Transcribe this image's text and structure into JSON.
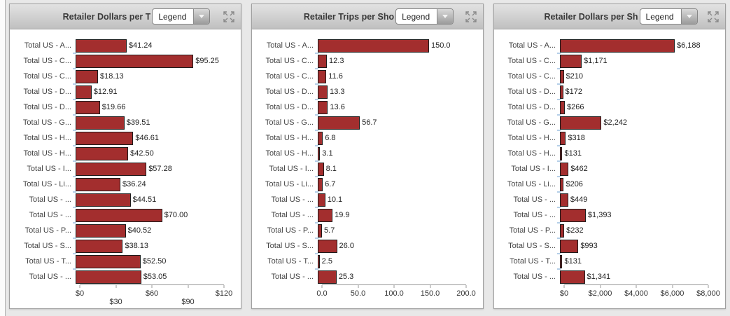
{
  "window": {
    "background": "#e8e8e8"
  },
  "legend_label": "Legend",
  "icons": {
    "header_right": "expand-arrows",
    "dropdown": "chevron-down"
  },
  "chart_data": [
    {
      "type": "bar",
      "orientation": "horizontal",
      "title": "Retailer Dollars per T",
      "legend": "Legend",
      "bar_color": "#A32E2E",
      "categories": [
        "Total US - A...",
        "Total US - C...",
        "Total US - C...",
        "Total US - D...",
        "Total US - D...",
        "Total US - G...",
        "Total US - H...",
        "Total US - H...",
        "Total US - I...",
        "Total US - Li...",
        "Total US - ...",
        "Total US - ...",
        "Total US - P...",
        "Total US - S...",
        "Total US - T...",
        "Total US - ..."
      ],
      "values": [
        41.24,
        95.25,
        18.13,
        12.91,
        19.66,
        39.51,
        46.61,
        42.5,
        57.28,
        36.24,
        44.51,
        70.0,
        40.52,
        38.13,
        52.5,
        53.05
      ],
      "value_labels": [
        "$41.24",
        "$95.25",
        "$18.13",
        "$12.91",
        "$19.66",
        "$39.51",
        "$46.61",
        "$42.50",
        "$57.28",
        "$36.24",
        "$44.51",
        "$70.00",
        "$40.52",
        "$38.13",
        "$52.50",
        "$53.05"
      ],
      "xlim": [
        0,
        120
      ],
      "x_ticks": [
        "$0",
        "$30",
        "$60",
        "$90",
        "$120"
      ],
      "x_axis_staggered": true,
      "grid": false
    },
    {
      "type": "bar",
      "orientation": "horizontal",
      "title": "Retailer Trips per Sho",
      "legend": "Legend",
      "bar_color": "#A32E2E",
      "categories": [
        "Total US - A...",
        "Total US - C...",
        "Total US - C...",
        "Total US - D...",
        "Total US - D...",
        "Total US - G...",
        "Total US - H...",
        "Total US - H...",
        "Total US - I...",
        "Total US - Li...",
        "Total US - ...",
        "Total US - ...",
        "Total US - P...",
        "Total US - S...",
        "Total US - T...",
        "Total US - ..."
      ],
      "values": [
        150.0,
        12.3,
        11.6,
        13.3,
        13.6,
        56.7,
        6.8,
        3.1,
        8.1,
        6.7,
        10.1,
        19.9,
        5.7,
        26.0,
        2.5,
        25.3
      ],
      "value_labels": [
        "150.0",
        "12.3",
        "11.6",
        "13.3",
        "13.6",
        "56.7",
        "6.8",
        "3.1",
        "8.1",
        "6.7",
        "10.1",
        "19.9",
        "5.7",
        "26.0",
        "2.5",
        "25.3"
      ],
      "xlim": [
        0,
        200
      ],
      "x_ticks": [
        "0.0",
        "50.0",
        "100.0",
        "150.0",
        "200.0"
      ],
      "x_axis_staggered": false,
      "grid": false
    },
    {
      "type": "bar",
      "orientation": "horizontal",
      "title": "Retailer Dollars per Sh",
      "legend": "Legend",
      "bar_color": "#A32E2E",
      "categories": [
        "Total US - A...",
        "Total US - C...",
        "Total US - C...",
        "Total US - D...",
        "Total US - D...",
        "Total US - G...",
        "Total US - H...",
        "Total US - H...",
        "Total US - I...",
        "Total US - Li...",
        "Total US - ...",
        "Total US - ...",
        "Total US - P...",
        "Total US - S...",
        "Total US - T...",
        "Total US - ..."
      ],
      "values": [
        6188,
        1171,
        210,
        172,
        266,
        2242,
        318,
        131,
        462,
        206,
        449,
        1393,
        232,
        993,
        131,
        1341
      ],
      "value_labels": [
        "$6,188",
        "$1,171",
        "$210",
        "$172",
        "$266",
        "$2,242",
        "$318",
        "$131",
        "$462",
        "$206",
        "$449",
        "$1,393",
        "$232",
        "$993",
        "$131",
        "$1,341"
      ],
      "xlim": [
        0,
        8000
      ],
      "x_ticks": [
        "$0",
        "$2,000",
        "$4,000",
        "$6,000",
        "$8,000"
      ],
      "x_axis_staggered": false,
      "grid": false
    }
  ]
}
